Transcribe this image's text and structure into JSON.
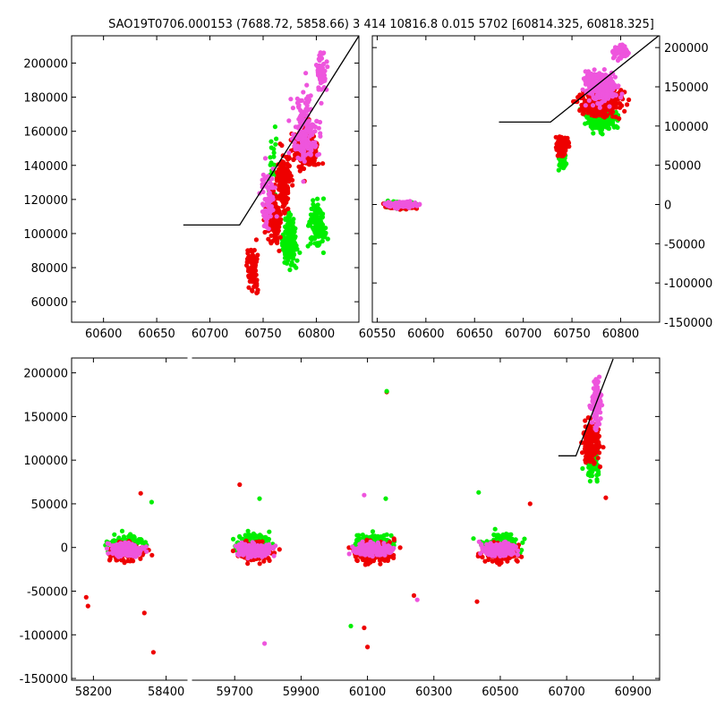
{
  "title": "SAO19T0706.000153 (7688.72, 5858.66)   3 414 10816.8 0.015 5702 [60814.325, 60818.325]",
  "colors": {
    "green": "#00ee00",
    "red": "#ee0000",
    "magenta": "#ee55dd",
    "line": "#000000"
  },
  "chart_data": [
    {
      "id": "top-left",
      "type": "scatter",
      "title": "",
      "xlim": [
        60570,
        60840
      ],
      "ylim": [
        48000,
        216000
      ],
      "xticks": [
        60600,
        60650,
        60700,
        60750,
        60800
      ],
      "yticks": [
        60000,
        80000,
        100000,
        120000,
        140000,
        160000,
        180000,
        200000
      ],
      "ytick_side": "left",
      "model_line": [
        [
          60675,
          105000
        ],
        [
          60728,
          105000
        ],
        [
          60840,
          216000
        ]
      ],
      "series": [
        {
          "name": "green",
          "clusters": [
            [
              60775,
              95000,
              8,
              15000,
              180
            ],
            [
              60800,
              105000,
              10,
              15000,
              120
            ],
            [
              60760,
              140000,
              6,
              25000,
              25
            ]
          ]
        },
        {
          "name": "red",
          "clusters": [
            [
              60740,
              80000,
              6,
              15000,
              90
            ],
            [
              60760,
              110000,
              8,
              15000,
              170
            ],
            [
              60790,
              150000,
              12,
              15000,
              260
            ],
            [
              60770,
              130000,
              8,
              20000,
              140
            ]
          ]
        },
        {
          "name": "magenta",
          "clusters": [
            [
              60790,
              160000,
              14,
              25000,
              160
            ],
            [
              60805,
              195000,
              5,
              12000,
              70
            ],
            [
              60755,
              120000,
              8,
              20000,
              70
            ]
          ]
        }
      ]
    },
    {
      "id": "top-right",
      "type": "scatter",
      "title": "",
      "xlim": [
        60545,
        60840
      ],
      "ylim": [
        -150000,
        215000
      ],
      "xticks": [
        60550,
        60600,
        60650,
        60700,
        60750,
        60800
      ],
      "yticks": [
        -150000,
        -100000,
        -50000,
        0,
        50000,
        100000,
        150000,
        200000
      ],
      "ytick_side": "right",
      "model_line": [
        [
          60675,
          105000
        ],
        [
          60728,
          105000
        ],
        [
          60840,
          216000
        ]
      ],
      "series": [
        {
          "name": "green",
          "clusters": [
            [
              60575,
              0,
              17,
              4500,
              160
            ],
            [
              60780,
              110000,
              18,
              20000,
              220
            ],
            [
              60740,
              55000,
              5,
              12000,
              40
            ]
          ]
        },
        {
          "name": "red",
          "clusters": [
            [
              60575,
              -2000,
              17,
              4500,
              120
            ],
            [
              60780,
              130000,
              25,
              20000,
              300
            ],
            [
              60740,
              75000,
              8,
              15000,
              90
            ]
          ]
        },
        {
          "name": "magenta",
          "clusters": [
            [
              60575,
              0,
              17,
              4500,
              170
            ],
            [
              60780,
              150000,
              20,
              25000,
              200
            ],
            [
              60800,
              195000,
              8,
              12000,
              50
            ]
          ]
        }
      ]
    },
    {
      "id": "bottom",
      "type": "scatter",
      "title": "",
      "broken_x_axis": true,
      "segments": [
        {
          "xlim": [
            58140,
            58460
          ],
          "xticks": [
            58200,
            58400
          ]
        },
        {
          "xlim": [
            59570,
            60980
          ],
          "xticks": [
            59700,
            59900,
            60100,
            60300,
            60500,
            60700,
            60900
          ]
        }
      ],
      "ylim": [
        -152000,
        217000
      ],
      "yticks": [
        -150000,
        -100000,
        -50000,
        0,
        50000,
        100000,
        150000,
        200000
      ],
      "ytick_side": "left",
      "model_line": [
        [
          60675,
          105000
        ],
        [
          60728,
          105000
        ],
        [
          60840,
          216000
        ]
      ],
      "series": [
        {
          "name": "green",
          "clusters": [
            [
              58290,
              5000,
              55,
              12000,
              130
            ],
            [
              59760,
              5000,
              55,
              12000,
              170
            ],
            [
              60120,
              5000,
              65,
              12000,
              170
            ],
            [
              60500,
              5000,
              60,
              12000,
              170
            ],
            [
              60780,
              95000,
              25,
              20000,
              80
            ]
          ]
        },
        {
          "name": "red",
          "clusters": [
            [
              58290,
              -4000,
              55,
              12000,
              160
            ],
            [
              59760,
              -5000,
              55,
              12000,
              210
            ],
            [
              60120,
              -5000,
              65,
              14000,
              230
            ],
            [
              60500,
              -5000,
              60,
              12000,
              220
            ],
            [
              60775,
              120000,
              30,
              30000,
              140
            ]
          ]
        },
        {
          "name": "magenta",
          "clusters": [
            [
              58290,
              -2000,
              55,
              8000,
              170
            ],
            [
              59760,
              -3000,
              55,
              8000,
              230
            ],
            [
              60120,
              -2000,
              65,
              8000,
              260
            ],
            [
              60500,
              -2000,
              60,
              8000,
              240
            ],
            [
              60790,
              165000,
              20,
              30000,
              110
            ]
          ]
        }
      ],
      "outliers": [
        {
          "series": "red",
          "points": [
            [
              58330,
              62000
            ],
            [
              58340,
              -75000
            ],
            [
              58365,
              -120000
            ],
            [
              58180,
              -57000
            ],
            [
              58185,
              -67000
            ],
            [
              59715,
              72000
            ],
            [
              60158,
              178000
            ],
            [
              60100,
              -114000
            ],
            [
              60090,
              -92000
            ],
            [
              60240,
              -55000
            ],
            [
              60430,
              -62000
            ],
            [
              60590,
              50000
            ],
            [
              60818,
              57000
            ]
          ]
        },
        {
          "series": "green",
          "points": [
            [
              58360,
              52000
            ],
            [
              59775,
              56000
            ],
            [
              60158,
              179000
            ],
            [
              60155,
              56000
            ],
            [
              60435,
              63000
            ],
            [
              60050,
              -90000
            ]
          ]
        },
        {
          "series": "magenta",
          "points": [
            [
              59790,
              -110000
            ],
            [
              60090,
              60000
            ],
            [
              60250,
              -60000
            ]
          ]
        }
      ]
    }
  ]
}
